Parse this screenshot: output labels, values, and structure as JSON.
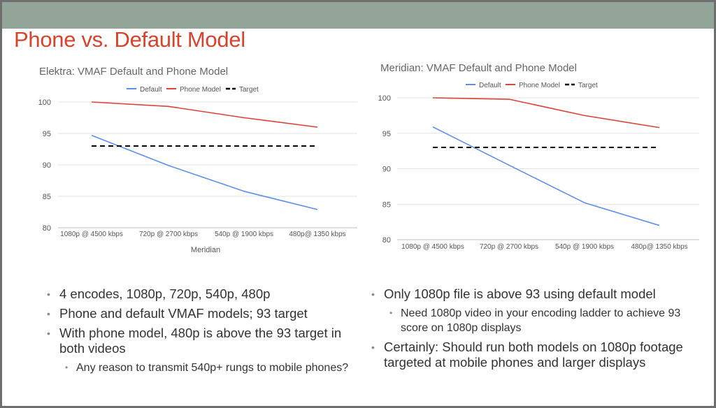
{
  "slide": {
    "title": "Phone vs. Default Model",
    "colors": {
      "title": "#d9432b",
      "topbar": "#93a599"
    }
  },
  "chart_data": [
    {
      "type": "line",
      "title": "Elektra: VMAF Default and Phone Model",
      "xlabel": "Meridian",
      "ylabel": "",
      "categories": [
        "1080p @  4500 kbps",
        "720p @ 2700 kbps",
        "540p @ 1900 kbps",
        "480p@ 1350 kbps"
      ],
      "ylim": [
        80,
        100
      ],
      "yticks": [
        80,
        85,
        90,
        95,
        100
      ],
      "grid": true,
      "legend_position": "top",
      "series": [
        {
          "name": "Default",
          "color": "#5b8ff0",
          "dashed": false,
          "values": [
            94.7,
            89.9,
            85.8,
            82.9
          ]
        },
        {
          "name": "Phone Model",
          "color": "#db4437",
          "dashed": false,
          "values": [
            100,
            99.3,
            97.5,
            96.0
          ]
        },
        {
          "name": "Target",
          "color": "#000000",
          "dashed": true,
          "values": [
            93,
            93,
            93,
            93
          ]
        }
      ]
    },
    {
      "type": "line",
      "title": "Meridian: VMAF Default and Phone Model",
      "xlabel": "",
      "ylabel": "",
      "categories": [
        "1080p @  4500 kbps",
        "720p @ 2700 kbps",
        "540p @ 1900 kbps",
        "480p@ 1350 kbps"
      ],
      "ylim": [
        80,
        100
      ],
      "yticks": [
        80,
        85,
        90,
        95,
        100
      ],
      "grid": true,
      "legend_position": "top",
      "series": [
        {
          "name": "Default",
          "color": "#5b8ff0",
          "dashed": false,
          "values": [
            95.9,
            90.5,
            85.2,
            82.0
          ]
        },
        {
          "name": "Phone Model",
          "color": "#db4437",
          "dashed": false,
          "values": [
            100,
            99.8,
            97.5,
            95.8
          ]
        },
        {
          "name": "Target",
          "color": "#000000",
          "dashed": true,
          "values": [
            93,
            93,
            93,
            93
          ]
        }
      ]
    }
  ],
  "left_bullets": [
    {
      "text": "4 encodes, 1080p, 720p, 540p, 480p",
      "level": 1
    },
    {
      "text": "Phone and default VMAF models; 93 target",
      "level": 1
    },
    {
      "text": "With phone model, 480p is above the 93 target in both videos",
      "level": 1
    },
    {
      "text": "Any reason to transmit 540p+ rungs to mobile phones?",
      "level": 2
    }
  ],
  "right_bullets": [
    {
      "text": "Only 1080p file is above 93 using default model",
      "level": 1
    },
    {
      "text": "Need 1080p video in your encoding ladder to achieve 93 score on 1080p displays",
      "level": 2
    },
    {
      "text": "Certainly: Should run both models on 1080p footage targeted at mobile phones and larger displays",
      "level": 1
    }
  ]
}
